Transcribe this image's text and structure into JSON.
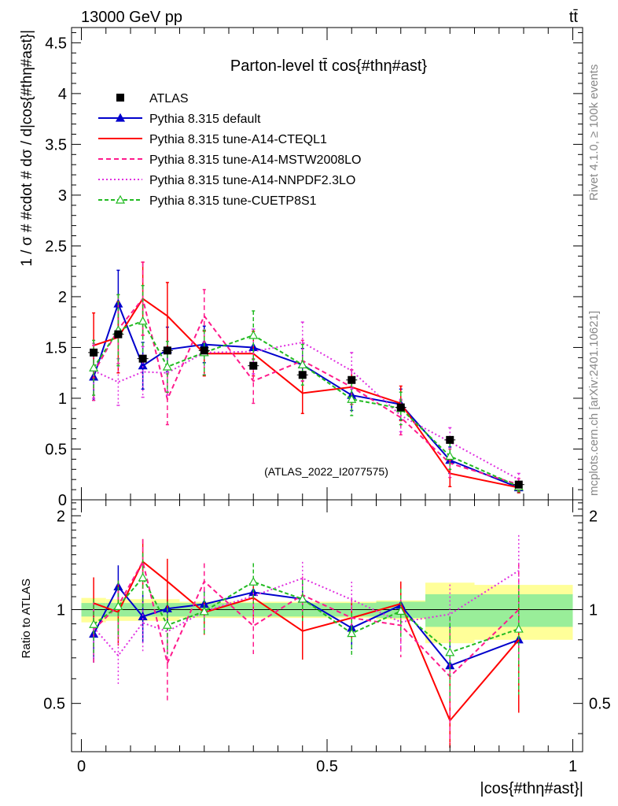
{
  "header": {
    "energy": "13000 GeV pp",
    "process": "tt̄"
  },
  "side": {
    "rivet": "Rivet 4.1.0, ≥ 100k events",
    "mcplots": "mcplots.cern.ch [arXiv:2401.10621]"
  },
  "chart_data": {
    "type": "line",
    "title": "Parton-level tt̄ cos{#thη#ast}",
    "xlabel": "|cos{#thη#ast}|",
    "ylabel": "1 / σ # #cdot # dσ / d|cos{#thη#ast}|",
    "ratio_ylabel": "Ratio to ATLAS",
    "analysis_label": "(ATLAS_2022_I2077575)",
    "xlim": [
      -0.02,
      1.02
    ],
    "ylim": [
      0,
      4.65
    ],
    "ratio_ylim": [
      0.35,
      2.25
    ],
    "x_ticks": [
      "0",
      "0.5",
      "1"
    ],
    "y_ticks": [
      "0",
      "0.5",
      "1",
      "1.5",
      "2",
      "2.5",
      "3",
      "3.5",
      "4",
      "4.5"
    ],
    "ratio_y_ticks": [
      "0.5",
      "1",
      "2"
    ],
    "x": [
      0.025,
      0.075,
      0.125,
      0.175,
      0.25,
      0.35,
      0.45,
      0.55,
      0.65,
      0.75,
      0.89
    ],
    "bin_edges": [
      0.0,
      0.05,
      0.1,
      0.15,
      0.2,
      0.3,
      0.4,
      0.5,
      0.6,
      0.7,
      0.8,
      1.0
    ],
    "data": {
      "name": "ATLAS",
      "values": [
        1.45,
        1.63,
        1.39,
        1.47,
        1.47,
        1.32,
        1.23,
        1.18,
        0.91,
        0.59,
        0.15
      ],
      "band_inner": [
        0.05,
        0.05,
        0.05,
        0.05,
        0.05,
        0.05,
        0.05,
        0.05,
        0.06,
        0.12,
        0.12
      ],
      "band_outer": [
        0.09,
        0.08,
        0.08,
        0.08,
        0.06,
        0.06,
        0.06,
        0.06,
        0.07,
        0.22,
        0.2
      ]
    },
    "series": [
      {
        "name": "Pythia 8.315 default",
        "color": "#0000cc",
        "dash": "",
        "marker": "triangle-filled",
        "values": [
          1.21,
          1.93,
          1.32,
          1.48,
          1.53,
          1.5,
          1.33,
          1.03,
          0.94,
          0.39,
          0.12
        ],
        "errors": [
          0.23,
          0.33,
          0.23,
          0.22,
          0.18,
          0.18,
          0.16,
          0.15,
          0.15,
          0.13,
          0.05
        ]
      },
      {
        "name": "Pythia 8.315 tune-A14-CTEQL1",
        "color": "#ff0000",
        "dash": "",
        "marker": "none",
        "values": [
          1.52,
          1.6,
          1.98,
          1.81,
          1.44,
          1.44,
          1.05,
          1.11,
          0.95,
          0.26,
          0.12
        ],
        "errors": [
          0.32,
          0.35,
          0.36,
          0.33,
          0.22,
          0.22,
          0.2,
          0.17,
          0.17,
          0.13,
          0.05
        ]
      },
      {
        "name": "Pythia 8.315 tune-A14-MSTW2008LO",
        "color": "#ff1a8c",
        "dash": "6,4",
        "marker": "none",
        "values": [
          1.25,
          1.68,
          1.98,
          0.99,
          1.81,
          1.17,
          1.37,
          1.11,
          0.81,
          0.36,
          0.15
        ],
        "errors": [
          0.27,
          0.34,
          0.36,
          0.25,
          0.26,
          0.22,
          0.2,
          0.17,
          0.17,
          0.14,
          0.06
        ]
      },
      {
        "name": "Pythia 8.315 tune-A14-NNPDF2.3LO",
        "color": "#e030e0",
        "dash": "2,3",
        "marker": "none",
        "values": [
          1.27,
          1.16,
          1.26,
          1.25,
          1.45,
          1.46,
          1.55,
          1.27,
          0.83,
          0.57,
          0.2
        ],
        "errors": [
          0.27,
          0.23,
          0.25,
          0.22,
          0.22,
          0.22,
          0.2,
          0.18,
          0.16,
          0.14,
          0.06
        ]
      },
      {
        "name": "Pythia 8.315 tune-CUETP8S1",
        "color": "#22bb22",
        "dash": "5,3",
        "marker": "triangle-open",
        "values": [
          1.3,
          1.67,
          1.76,
          1.31,
          1.45,
          1.62,
          1.33,
          0.99,
          0.9,
          0.43,
          0.13
        ],
        "errors": [
          0.27,
          0.35,
          0.35,
          0.25,
          0.22,
          0.24,
          0.2,
          0.16,
          0.16,
          0.13,
          0.05
        ]
      }
    ]
  }
}
